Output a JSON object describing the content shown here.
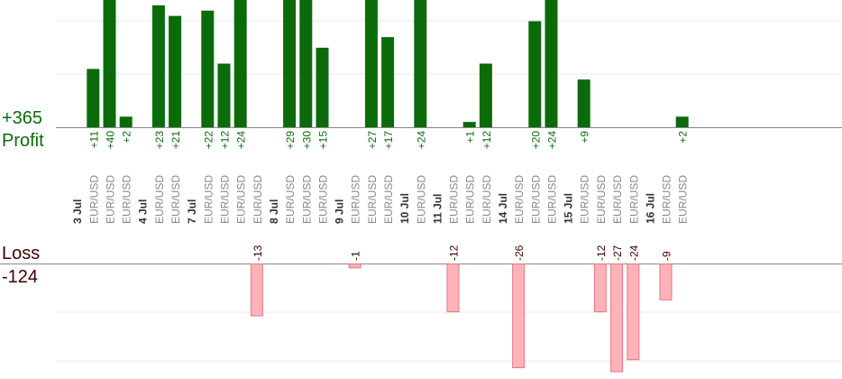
{
  "summary": {
    "profit_total": "+365",
    "profit_label": "Profit",
    "loss_label": "Loss",
    "loss_total": "-124"
  },
  "colors": {
    "profit_bar": "#0b6b0b",
    "profit_text": "#0b6b0b",
    "loss_bar": "#ffb3b8",
    "loss_edge": "#e07a82",
    "loss_text": "#3a0000",
    "date_text": "#333333",
    "symbol_text": "#888888",
    "grid": "#e8e8e8",
    "baseline": "#888888"
  },
  "chart_data": {
    "type": "bar",
    "title": "",
    "xlabel": "",
    "ylabel": "",
    "profit_axis_max": 24,
    "loss_axis_max": 26,
    "grid": true,
    "columns": [
      {
        "kind": "date",
        "label": "3 Jul"
      },
      {
        "kind": "trade",
        "symbol": "EUR/USD",
        "value": 11
      },
      {
        "kind": "trade",
        "symbol": "EUR/USD",
        "value": 40
      },
      {
        "kind": "trade",
        "symbol": "EUR/USD",
        "value": 2
      },
      {
        "kind": "gap"
      },
      {
        "kind": "date",
        "label": "4 Jul"
      },
      {
        "kind": "trade",
        "symbol": "EUR/USD",
        "value": 23
      },
      {
        "kind": "trade",
        "symbol": "EUR/USD",
        "value": 21
      },
      {
        "kind": "gap"
      },
      {
        "kind": "date",
        "label": "7 Jul"
      },
      {
        "kind": "trade",
        "symbol": "EUR/USD",
        "value": 22
      },
      {
        "kind": "trade",
        "symbol": "EUR/USD",
        "value": 12
      },
      {
        "kind": "trade",
        "symbol": "EUR/USD",
        "value": 24
      },
      {
        "kind": "trade",
        "symbol": "EUR/USD",
        "value": -13
      },
      {
        "kind": "gap"
      },
      {
        "kind": "date",
        "label": "8 Jul"
      },
      {
        "kind": "trade",
        "symbol": "EUR/USD",
        "value": 29
      },
      {
        "kind": "trade",
        "symbol": "EUR/USD",
        "value": 30
      },
      {
        "kind": "trade",
        "symbol": "EUR/USD",
        "value": 15
      },
      {
        "kind": "gap"
      },
      {
        "kind": "date",
        "label": "9 Jul"
      },
      {
        "kind": "trade",
        "symbol": "EUR/USD",
        "value": -1
      },
      {
        "kind": "trade",
        "symbol": "EUR/USD",
        "value": 27
      },
      {
        "kind": "trade",
        "symbol": "EUR/USD",
        "value": 17
      },
      {
        "kind": "gap"
      },
      {
        "kind": "date",
        "label": "10 Jul"
      },
      {
        "kind": "trade",
        "symbol": "EUR/USD",
        "value": 24
      },
      {
        "kind": "gap"
      },
      {
        "kind": "date",
        "label": "11 Jul"
      },
      {
        "kind": "trade",
        "symbol": "EUR/USD",
        "value": -12
      },
      {
        "kind": "trade",
        "symbol": "EUR/USD",
        "value": 1
      },
      {
        "kind": "trade",
        "symbol": "EUR/USD",
        "value": 12
      },
      {
        "kind": "gap"
      },
      {
        "kind": "date",
        "label": "14 Jul"
      },
      {
        "kind": "trade",
        "symbol": "EUR/USD",
        "value": -26
      },
      {
        "kind": "trade",
        "symbol": "EUR/USD",
        "value": 20
      },
      {
        "kind": "trade",
        "symbol": "EUR/USD",
        "value": 24
      },
      {
        "kind": "gap"
      },
      {
        "kind": "date",
        "label": "15 Jul"
      },
      {
        "kind": "trade",
        "symbol": "EUR/USD",
        "value": 9
      },
      {
        "kind": "trade",
        "symbol": "EUR/USD",
        "value": -12
      },
      {
        "kind": "trade",
        "symbol": "EUR/USD",
        "value": -27
      },
      {
        "kind": "trade",
        "symbol": "EUR/USD",
        "value": -24
      },
      {
        "kind": "gap"
      },
      {
        "kind": "date",
        "label": "16 Jul"
      },
      {
        "kind": "trade",
        "symbol": "EUR/USD",
        "value": -9
      },
      {
        "kind": "trade",
        "symbol": "EUR/USD",
        "value": 2
      }
    ]
  }
}
